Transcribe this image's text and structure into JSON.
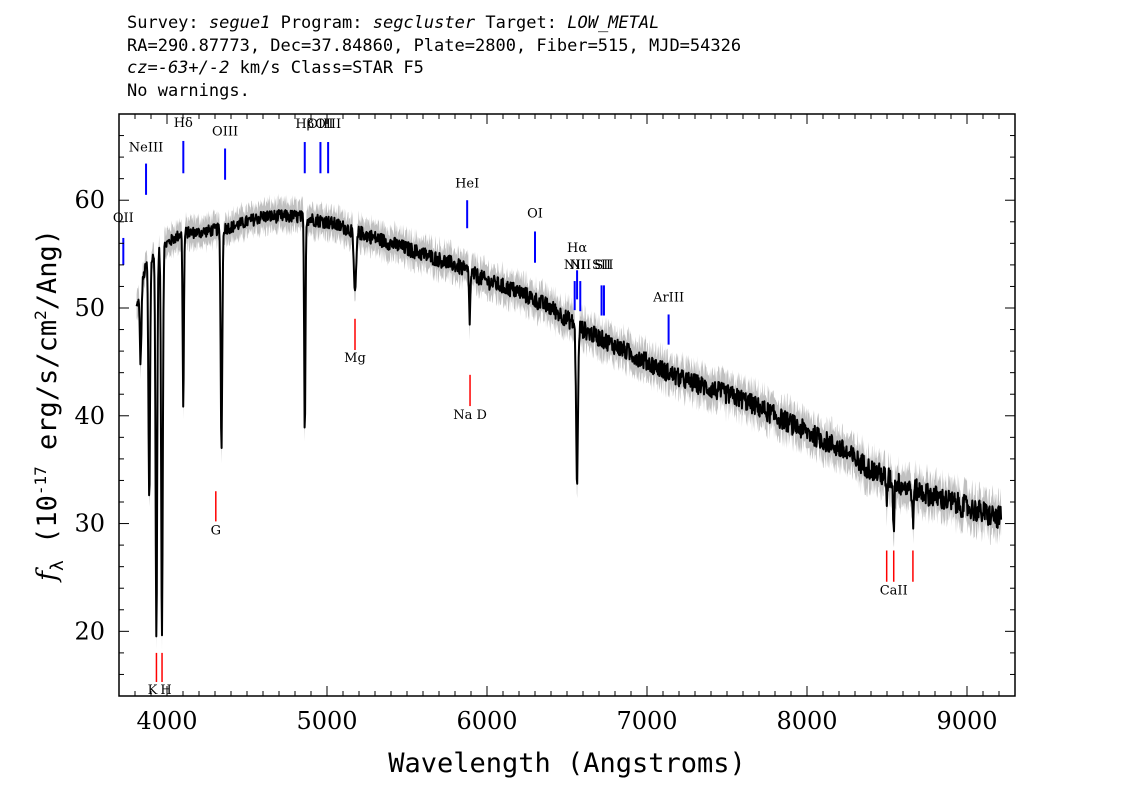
{
  "header": {
    "survey_label": "Survey:",
    "survey": "segue1",
    "program_label": "Program:",
    "program": "segcluster",
    "target_label": "Target:",
    "target": "LOW_METAL",
    "line2": "RA=290.87773, Dec=37.84860, Plate=2800, Fiber=515, MJD=54326",
    "cz": "cz=-63+/-2",
    "cz_rest": " km/s Class=STAR F5",
    "line4": "No warnings."
  },
  "chart_data": {
    "type": "line",
    "xlabel": "Wavelength (Angstroms)",
    "ylabel": "f_λ (10^-17 erg/s/cm^2/Ang)",
    "xlim": [
      3700,
      9300
    ],
    "ylim": [
      14,
      68
    ],
    "x_ticks": [
      4000,
      5000,
      6000,
      7000,
      8000,
      9000
    ],
    "y_ticks": [
      20,
      30,
      40,
      50,
      60
    ],
    "grid": false,
    "colors": {
      "spectrum": "#000000",
      "error_band": "#c0c0c0",
      "emission": "#0000ff",
      "absorption": "#ff0000"
    },
    "continuum": [
      [
        3810,
        50
      ],
      [
        3870,
        54
      ],
      [
        4000,
        56
      ],
      [
        4100,
        57
      ],
      [
        4200,
        57
      ],
      [
        4400,
        57.5
      ],
      [
        4600,
        58.5
      ],
      [
        4800,
        58.5
      ],
      [
        5000,
        58
      ],
      [
        5200,
        57
      ],
      [
        5400,
        56
      ],
      [
        5600,
        55
      ],
      [
        5800,
        54
      ],
      [
        6000,
        52.5
      ],
      [
        6200,
        51.5
      ],
      [
        6400,
        50
      ],
      [
        6600,
        48
      ],
      [
        6800,
        46.5
      ],
      [
        7000,
        45
      ],
      [
        7200,
        43.5
      ],
      [
        7400,
        42.5
      ],
      [
        7600,
        41.5
      ],
      [
        7800,
        40
      ],
      [
        8000,
        38.5
      ],
      [
        8200,
        37
      ],
      [
        8400,
        35
      ],
      [
        8600,
        33.5
      ],
      [
        8800,
        32.5
      ],
      [
        9000,
        31.5
      ],
      [
        9200,
        30.5
      ]
    ],
    "absorption_features": [
      [
        3835,
        45,
        5
      ],
      [
        3889,
        32,
        5
      ],
      [
        3933.7,
        19.5,
        5
      ],
      [
        3968.5,
        19.5,
        5
      ],
      [
        4101.7,
        41,
        4
      ],
      [
        4340.5,
        37,
        5
      ],
      [
        4861.3,
        38.5,
        4
      ],
      [
        5175,
        51.5,
        8
      ],
      [
        5892,
        49,
        4
      ],
      [
        6562.8,
        34,
        6
      ],
      [
        8498,
        32,
        4
      ],
      [
        8542,
        29.5,
        4
      ],
      [
        8662,
        30,
        4
      ]
    ],
    "emission_lines": [
      {
        "label": "OII",
        "x": 3727,
        "y_top": 56.5,
        "y_bot": 54,
        "label_y": 58
      },
      {
        "label": "NeIII",
        "x": 3869,
        "y_top": 63.4,
        "y_bot": 60.5,
        "label_y": 64.5
      },
      {
        "label": "Hδ",
        "x": 4102,
        "y_top": 65.5,
        "y_bot": 62.5,
        "label_y": 66.8
      },
      {
        "label": "OIII",
        "x": 4363,
        "y_top": 64.8,
        "y_bot": 61.9,
        "label_y": 66
      },
      {
        "label": "Hβ",
        "x": 4861,
        "y_top": 65.4,
        "y_bot": 62.5,
        "label_y": 66.7
      },
      {
        "label": "OIII",
        "x": 4959,
        "y_top": 65.4,
        "y_bot": 62.5,
        "label_y": 66.7
      },
      {
        "label": "OIII",
        "x": 5007,
        "y_top": 65.4,
        "y_bot": 62.5,
        "label_y": 66.7
      },
      {
        "label": "HeI",
        "x": 5876,
        "y_top": 60,
        "y_bot": 57.4,
        "label_y": 61.2
      },
      {
        "label": "OI",
        "x": 6300,
        "y_top": 57.1,
        "y_bot": 54.2,
        "label_y": 58.4
      },
      {
        "label": "NII",
        "x": 6548,
        "y_top": 52.5,
        "y_bot": 49.8,
        "label_y": 53.6
      },
      {
        "label": "Hα",
        "x": 6563,
        "y_top": 53.5,
        "y_bot": 50.8,
        "label_y": 55.2
      },
      {
        "label": "NII",
        "x": 6583,
        "y_top": 52.5,
        "y_bot": 49.7,
        "label_y": 53.6
      },
      {
        "label": "SII",
        "x": 6716,
        "y_top": 52.1,
        "y_bot": 49.3,
        "label_y": 53.6
      },
      {
        "label": "SII",
        "x": 6731,
        "y_top": 52.1,
        "y_bot": 49.3,
        "label_y": 53.6
      },
      {
        "label": "ArIII",
        "x": 7135,
        "y_top": 49.4,
        "y_bot": 46.6,
        "label_y": 50.6
      }
    ],
    "absorption_lines": [
      {
        "label": "K",
        "x": 3934,
        "y_top": 18,
        "y_bot": 15.3,
        "label_y": 14.2
      },
      {
        "label": "H",
        "x": 3969,
        "y_top": 18,
        "y_bot": 15.3,
        "label_y": 14.2
      },
      {
        "label": "G",
        "x": 4305,
        "y_top": 33,
        "y_bot": 30.2,
        "label_y": 29
      },
      {
        "label": "Mg",
        "x": 5175,
        "y_top": 49,
        "y_bot": 46.1,
        "label_y": 45
      },
      {
        "label": "Na D",
        "x": 5894,
        "y_top": 43.8,
        "y_bot": 40.9,
        "label_y": 39.7
      },
      {
        "label": "CaII",
        "x": 8498,
        "y_top": 27.5,
        "y_bot": 24.6,
        "label_y": 23.4
      },
      {
        "label": "CaII",
        "x": 8542,
        "y_top": 27.5,
        "y_bot": 24.6,
        "label_y": 23.4
      },
      {
        "label": "CaII",
        "x": 8662,
        "y_top": 27.5,
        "y_bot": 24.6,
        "label_y": 23.4
      }
    ]
  }
}
